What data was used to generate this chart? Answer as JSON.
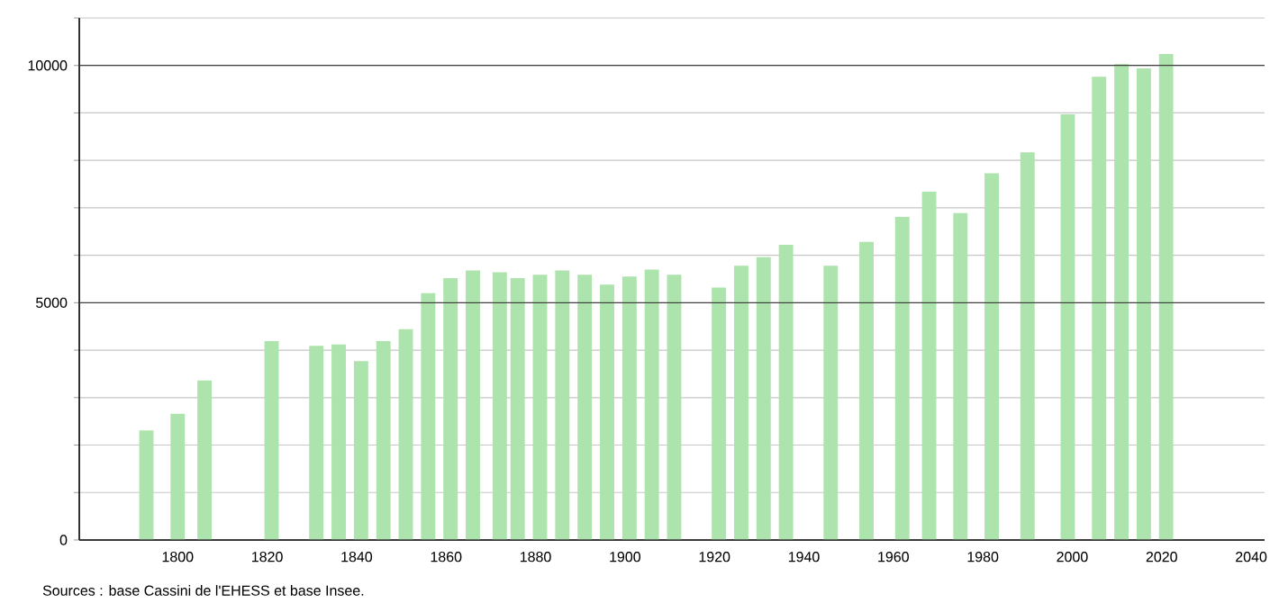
{
  "chart_data": {
    "type": "bar",
    "color": "#ade3ad",
    "x": [
      1793,
      1800,
      1806,
      1821,
      1831,
      1836,
      1841,
      1846,
      1851,
      1856,
      1861,
      1866,
      1872,
      1876,
      1881,
      1886,
      1891,
      1896,
      1901,
      1906,
      1911,
      1921,
      1926,
      1931,
      1936,
      1946,
      1954,
      1962,
      1968,
      1975,
      1982,
      1990,
      1999,
      2006,
      2011,
      2016,
      2021
    ],
    "values": [
      2310,
      2660,
      3360,
      4190,
      4090,
      4120,
      3770,
      4190,
      4440,
      5200,
      5520,
      5680,
      5640,
      5520,
      5590,
      5680,
      5590,
      5380,
      5550,
      5700,
      5590,
      5320,
      5780,
      5960,
      6220,
      5780,
      6280,
      6810,
      7340,
      6890,
      7730,
      8170,
      8970,
      9760,
      10030,
      9940,
      10240
    ],
    "xlim": [
      1778,
      2043
    ],
    "ylim": [
      0,
      11000
    ],
    "xticks": [
      1800,
      1820,
      1840,
      1860,
      1880,
      1900,
      1920,
      1940,
      1960,
      1980,
      2000,
      2020,
      2040
    ],
    "yticks": [
      0,
      {
        "value": 1000,
        "label": null
      },
      {
        "value": 2000,
        "label": null
      },
      {
        "value": 3000,
        "label": null
      },
      {
        "value": 4000,
        "label": null
      },
      5000,
      {
        "value": 6000,
        "label": null
      },
      {
        "value": 7000,
        "label": null
      },
      {
        "value": 8000,
        "label": null
      },
      {
        "value": 9000,
        "label": null
      },
      10000,
      {
        "value": 11000,
        "label": null
      }
    ],
    "grid": "y",
    "annotations": [
      "Sources : base Cassini de l'EHESS et base Insee."
    ]
  }
}
